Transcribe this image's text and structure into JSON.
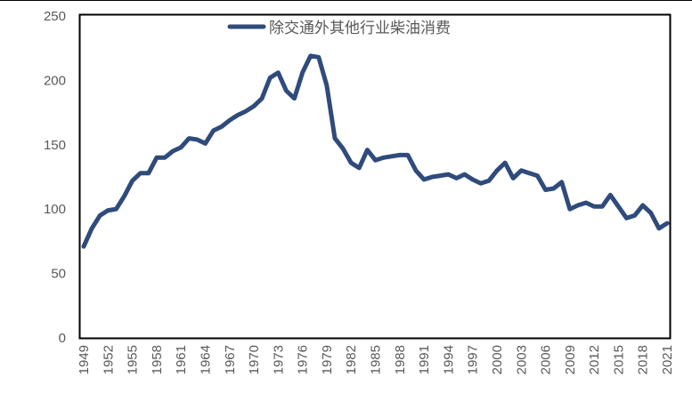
{
  "chart_data": {
    "type": "line",
    "title": "",
    "xlabel": "",
    "ylabel": "",
    "ylim": [
      0,
      250
    ],
    "yticks": [
      0,
      50,
      100,
      150,
      200,
      250
    ],
    "xtick_labels": [
      "1949",
      "1952",
      "1955",
      "1958",
      "1961",
      "1964",
      "1967",
      "1970",
      "1973",
      "1976",
      "1979",
      "1982",
      "1985",
      "1988",
      "1991",
      "1994",
      "1997",
      "2000",
      "2003",
      "2006",
      "2009",
      "2012",
      "2015",
      "2018",
      "2021"
    ],
    "grid": false,
    "legend": "top-center",
    "x": [
      1949,
      1950,
      1951,
      1952,
      1953,
      1954,
      1955,
      1956,
      1957,
      1958,
      1959,
      1960,
      1961,
      1962,
      1963,
      1964,
      1965,
      1966,
      1967,
      1968,
      1969,
      1970,
      1971,
      1972,
      1973,
      1974,
      1975,
      1976,
      1977,
      1978,
      1979,
      1980,
      1981,
      1982,
      1983,
      1984,
      1985,
      1986,
      1987,
      1988,
      1989,
      1990,
      1991,
      1992,
      1993,
      1994,
      1995,
      1996,
      1997,
      1998,
      1999,
      2000,
      2001,
      2002,
      2003,
      2004,
      2005,
      2006,
      2007,
      2008,
      2009,
      2010,
      2011,
      2012,
      2013,
      2014,
      2015,
      2016,
      2017,
      2018,
      2019,
      2020,
      2021
    ],
    "series": [
      {
        "name": "除交通外其他行业柴油消费",
        "color": "#2F4B7C",
        "values": [
          71,
          85,
          95,
          99,
          100,
          110,
          122,
          128,
          128,
          140,
          140,
          145,
          148,
          155,
          154,
          151,
          161,
          164,
          169,
          173,
          176,
          180,
          186,
          202,
          206,
          192,
          186,
          206,
          219,
          218,
          196,
          155,
          147,
          136,
          132,
          146,
          138,
          140,
          141,
          142,
          142,
          130,
          123,
          125,
          126,
          127,
          124,
          127,
          123,
          120,
          122,
          130,
          136,
          124,
          130,
          128,
          126,
          115,
          116,
          121,
          100,
          103,
          105,
          102,
          102,
          111,
          102,
          93,
          95,
          103,
          97,
          85,
          89
        ]
      }
    ]
  }
}
